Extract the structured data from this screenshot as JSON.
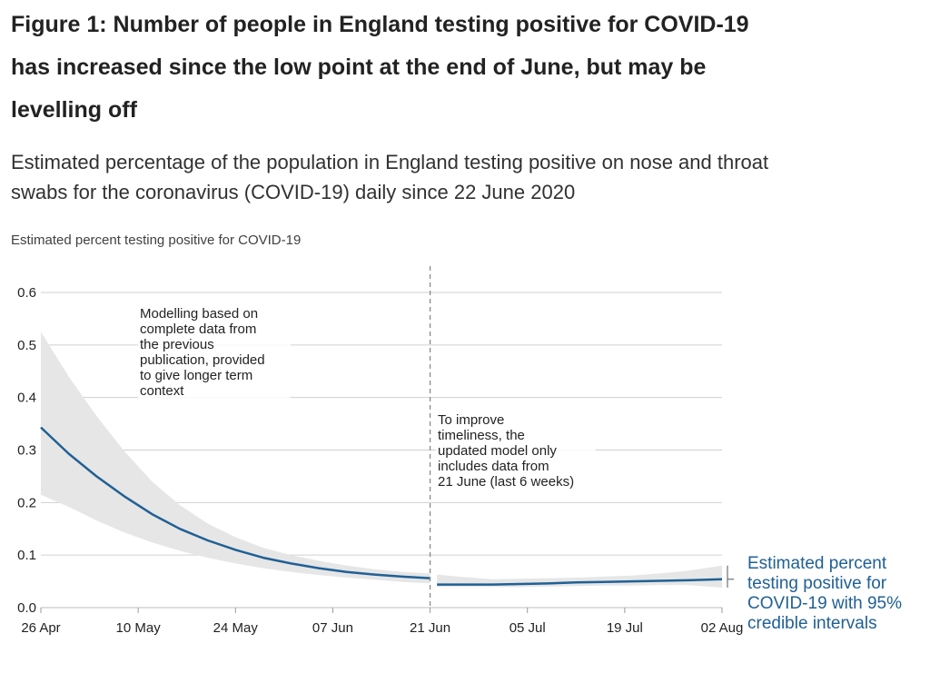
{
  "page": {
    "title": "Figure 1: Number of people in England testing positive for COVID-19 has increased since the low point at the end of June, but may be levelling off",
    "subtitle": "Estimated percentage of the population in England testing positive on nose and throat swabs for the coronavirus (COVID-19) daily since 22 June 2020"
  },
  "colors": {
    "line": "#206095",
    "band": "#e6e6e6",
    "grid": "#d0d0d0",
    "divider": "#8a8a8a"
  },
  "chart_data": {
    "type": "line",
    "title": "Figure 1: Number of people in England testing positive for COVID-19 has increased since the low point at the end of June, but may be levelling off",
    "subtitle": "Estimated percentage of the population in England testing positive on nose and throat swabs for the coronavirus (COVID-19) daily since 22 June 2020",
    "xlabel": "",
    "ylabel": "Estimated percent testing positive for COVID-19",
    "ylim": [
      0,
      0.6
    ],
    "yticks": [
      0.0,
      0.1,
      0.2,
      0.3,
      0.4,
      0.5,
      0.6
    ],
    "ytick_labels": [
      "0.0",
      "0.1",
      "0.2",
      "0.3",
      "0.4",
      "0.5",
      "0.6"
    ],
    "xlim": [
      "2020-04-26",
      "2020-08-02"
    ],
    "xticks": [
      "2020-04-26",
      "2020-05-10",
      "2020-05-24",
      "2020-06-07",
      "2020-06-21",
      "2020-07-05",
      "2020-07-19",
      "2020-08-02"
    ],
    "xtick_labels": [
      "26 Apr",
      "10 May",
      "24 May",
      "07 Jun",
      "21 Jun",
      "05 Jul",
      "19 Jul",
      "02 Aug"
    ],
    "grid": true,
    "legend_position": "right",
    "series": [
      {
        "name": "Estimated percent testing positive for COVID-19 with 95% credible intervals",
        "segments": [
          {
            "x": [
              "2020-04-26",
              "2020-04-30",
              "2020-05-04",
              "2020-05-08",
              "2020-05-12",
              "2020-05-16",
              "2020-05-20",
              "2020-05-24",
              "2020-05-28",
              "2020-06-01",
              "2020-06-05",
              "2020-06-09",
              "2020-06-13",
              "2020-06-17",
              "2020-06-21"
            ],
            "y": [
              0.343,
              0.293,
              0.25,
              0.212,
              0.178,
              0.15,
              0.128,
              0.11,
              0.095,
              0.084,
              0.075,
              0.068,
              0.063,
              0.059,
              0.056
            ],
            "lower": [
              0.215,
              0.192,
              0.166,
              0.143,
              0.124,
              0.108,
              0.095,
              0.084,
              0.075,
              0.068,
              0.062,
              0.057,
              0.053,
              0.049,
              0.046
            ],
            "upper": [
              0.525,
              0.44,
              0.365,
              0.298,
              0.24,
              0.195,
              0.16,
              0.134,
              0.114,
              0.1,
              0.089,
              0.08,
              0.073,
              0.068,
              0.065
            ]
          },
          {
            "x": [
              "2020-06-22",
              "2020-06-26",
              "2020-06-30",
              "2020-07-04",
              "2020-07-08",
              "2020-07-12",
              "2020-07-16",
              "2020-07-20",
              "2020-07-24",
              "2020-07-28",
              "2020-08-02"
            ],
            "y": [
              0.044,
              0.044,
              0.044,
              0.045,
              0.046,
              0.048,
              0.049,
              0.05,
              0.051,
              0.052,
              0.054
            ],
            "lower": [
              0.039,
              0.039,
              0.039,
              0.039,
              0.04,
              0.041,
              0.042,
              0.042,
              0.043,
              0.043,
              0.038
            ],
            "upper": [
              0.063,
              0.058,
              0.054,
              0.055,
              0.056,
              0.057,
              0.059,
              0.061,
              0.065,
              0.07,
              0.08
            ]
          }
        ]
      }
    ],
    "divider_date": "2020-06-21",
    "annotations": [
      {
        "lines": [
          "Modelling based on",
          "complete data from",
          "the previous",
          "publication, provided",
          "to give longer term",
          "context"
        ]
      },
      {
        "lines": [
          "To improve",
          "timeliness, the",
          "updated model only",
          "includes data from",
          "21 June (last 6 weeks)"
        ]
      }
    ],
    "legend_lines": [
      "Estimated percent",
      "testing positive for",
      "COVID-19 with 95%",
      "credible intervals"
    ]
  }
}
